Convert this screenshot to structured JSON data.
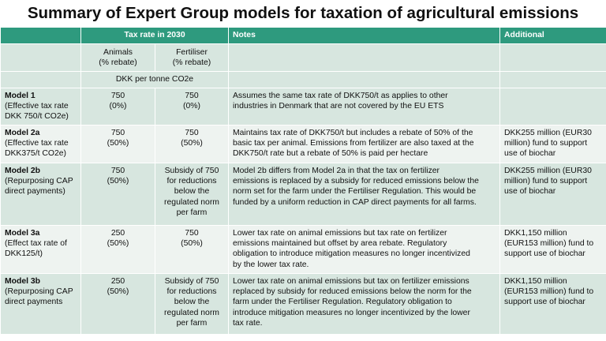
{
  "title": "Summary of Expert Group models for taxation of agricultural emissions",
  "header": {
    "tax_rate": "Tax rate in 2030",
    "notes": "Notes",
    "additional": "Additional"
  },
  "subheader": {
    "animals": "Animals\n(% rebate)",
    "fertiliser": "Fertiliser\n(% rebate)",
    "unit": "DKK per tonne CO2e"
  },
  "rows": [
    {
      "name": "Model 1",
      "desc": "(Effective tax rate\nDKK 750/t CO2e)",
      "animals": "750\n(0%)",
      "fertiliser": "750\n(0%)",
      "notes": "Assumes the same tax rate of DKK750/t as applies to other\nindustries in Denmark that are not covered by the EU ETS",
      "additional": ""
    },
    {
      "name": "Model 2a",
      "desc": "(Effective tax rate\nDKK375/t CO2e)",
      "animals": "750\n(50%)",
      "fertiliser": "750\n(50%)",
      "notes": "Maintains tax rate of DKK750/t but includes a rebate of 50% of the\nbasic tax per animal. Emissions from fertilizer are also taxed at the\nDKK750/t rate but a rebate of 50% is paid per hectare",
      "additional": "DKK255 million (EUR30\nmillion) fund to support\nuse of biochar"
    },
    {
      "name": "Model 2b",
      "desc": "(Repurposing CAP\ndirect payments)",
      "animals": "750\n(50%)",
      "fertiliser": "Subsidy of 750\nfor reductions\nbelow the\nregulated norm\nper farm",
      "notes": "Model 2b differs from Model 2a in that the tax on fertilizer\nemissions is replaced by a subsidy for reduced emissions below the\nnorm set for the farm under the Fertiliser Regulation. This would be\nfunded by a uniform reduction in CAP direct payments for all farms.",
      "additional": "DKK255 million (EUR30\nmillion) fund to support\nuse of biochar"
    },
    {
      "name": "Model 3a",
      "desc": "(Effect tax rate of\nDKK125/t)",
      "animals": "250\n(50%)",
      "fertiliser": "750\n(50%)",
      "notes": "Lower tax rate on animal emissions but tax rate on fertilizer\nemissions maintained but offset by area rebate. Regulatory\nobligation to introduce mitigation measures no longer incentivized\nby the lower tax rate.",
      "additional": "DKK1,150 million\n(EUR153 million) fund to\nsupport use of biochar"
    },
    {
      "name": "Model 3b",
      "desc": "(Repurposing CAP\ndirect payments",
      "animals": "250\n(50%)",
      "fertiliser": "Subsidy of 750\nfor reductions\nbelow the\nregulated norm\nper farm",
      "notes": "Lower tax rate on animal emissions but tax on fertilizer emissions\nreplaced by subsidy for reduced emissions below the norm for the\nfarm under the Fertiliser Regulation. Regulatory obligation to\nintroduce mitigation measures no longer incentivized by the lower\ntax rate.",
      "additional": "DKK1,150 million\n(EUR153  million) fund to\nsupport use of biochar"
    }
  ]
}
